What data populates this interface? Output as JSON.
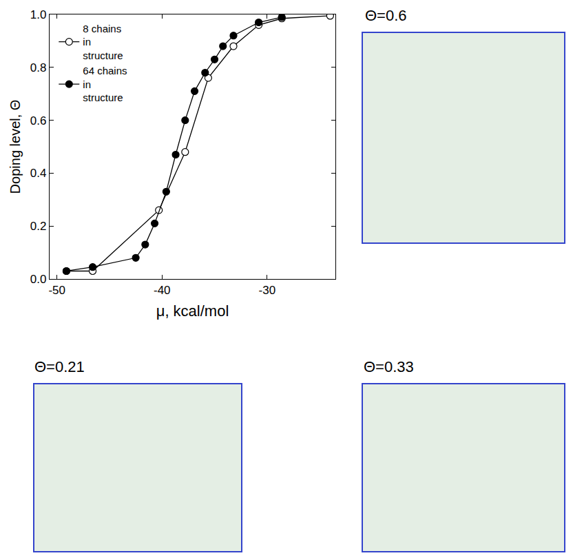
{
  "chart_data": {
    "type": "line",
    "x_label": "μ, kcal/mol",
    "y_label": "Doping level, Θ",
    "xlim": [
      -50.7,
      -23.5
    ],
    "xticks": [
      -50,
      -40,
      -30
    ],
    "ylim": [
      0,
      1
    ],
    "yticks": [
      {
        "value": 0,
        "label": "0.0"
      },
      {
        "value": 0.2,
        "label": "0.2"
      },
      {
        "value": 0.4,
        "label": "0.4"
      },
      {
        "value": 0.6,
        "label": "0.6"
      },
      {
        "value": 0.8,
        "label": "0.8"
      },
      {
        "value": 1,
        "label": "1.0"
      }
    ],
    "grid": false,
    "legend": "upper left",
    "series": [
      {
        "name": "8 chains in structure",
        "color": "#000000",
        "marker": "open circle",
        "x": [
          -49.1,
          -46.6,
          -40.3,
          -37.8,
          -35.6,
          -33.2,
          -30.8,
          -28.6,
          -24.0
        ],
        "values": [
          0.03,
          0.03,
          0.26,
          0.48,
          0.76,
          0.88,
          0.96,
          0.985,
          0.995
        ]
      },
      {
        "name": "64 chains in structure",
        "color": "#000000",
        "marker": "filled circle",
        "x": [
          -49.1,
          -46.6,
          -42.5,
          -41.6,
          -40.7,
          -39.6,
          -38.7,
          -37.8,
          -36.9,
          -35.9,
          -35.0,
          -34.2,
          -33.2,
          -30.8,
          -28.6
        ],
        "values": [
          0.03,
          0.045,
          0.08,
          0.13,
          0.21,
          0.33,
          0.47,
          0.6,
          0.71,
          0.78,
          0.83,
          0.88,
          0.92,
          0.97,
          0.99
        ]
      }
    ]
  },
  "snapshots": [
    {
      "title": "Θ=0.6"
    },
    {
      "title": "Θ=0.21"
    },
    {
      "title": "Θ=0.33"
    }
  ]
}
